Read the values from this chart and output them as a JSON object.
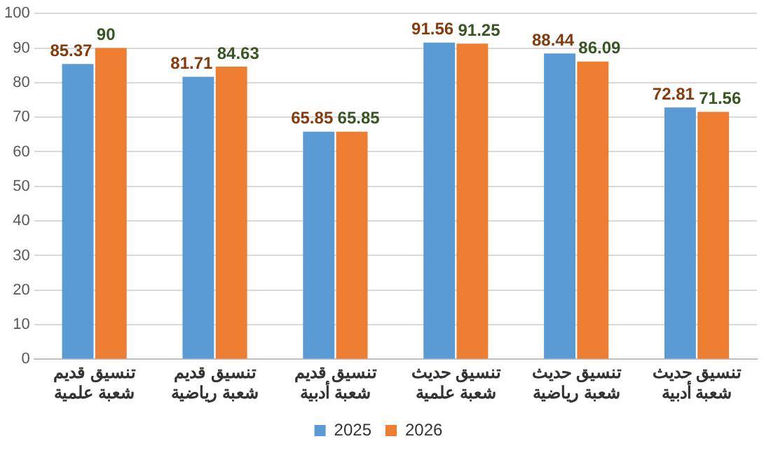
{
  "chart_data": {
    "type": "bar",
    "categories": [
      "تنسيق قديم شعبة علمية",
      "تنسيق قديم شعبة رياضية",
      "تنسيق قديم شعبة أدبية",
      "تنسيق حديث شعبة علمية",
      "تنسيق حديث شعبة رياضية",
      "تنسيق حديث شعبة أدبية"
    ],
    "series": [
      {
        "name": "2025",
        "color": "#5b9bd5",
        "values": [
          85.37,
          81.71,
          65.85,
          91.56,
          88.44,
          72.81
        ]
      },
      {
        "name": "2026",
        "color": "#ed7d31",
        "values": [
          90,
          84.63,
          65.85,
          91.25,
          86.09,
          71.56
        ]
      }
    ],
    "ylim": [
      0,
      100
    ],
    "yticks": [
      0,
      10,
      20,
      30,
      40,
      50,
      60,
      70,
      80,
      90,
      100
    ],
    "grid": "y",
    "legend": "bottom",
    "data_labels": true
  }
}
